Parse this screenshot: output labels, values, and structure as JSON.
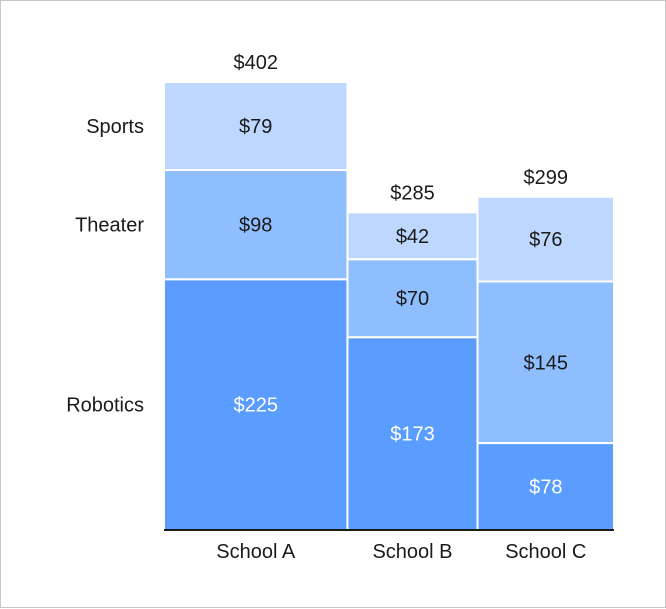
{
  "chart_data": {
    "type": "marimekko",
    "title": "",
    "xlabel": "",
    "ylabel": "",
    "categories": [
      "School A",
      "School B",
      "School C"
    ],
    "category_totals": [
      "$402",
      "$285",
      "$299"
    ],
    "series": [
      {
        "name": "Robotics",
        "values": [
          225,
          173,
          78
        ],
        "labels": [
          "$225",
          "$173",
          "$78"
        ],
        "color": "#5a9cff"
      },
      {
        "name": "Theater",
        "values": [
          98,
          70,
          145
        ],
        "labels": [
          "$98",
          "$70",
          "$145"
        ],
        "color": "#8fbeff"
      },
      {
        "name": "Sports",
        "values": [
          79,
          42,
          76
        ],
        "labels": [
          "$79",
          "$42",
          "$76"
        ],
        "color": "#bdd7ff"
      }
    ],
    "label_text_color_dark": "#1a1a1a",
    "label_text_color_light": "#ffffff",
    "grid": false,
    "legend": "left"
  }
}
